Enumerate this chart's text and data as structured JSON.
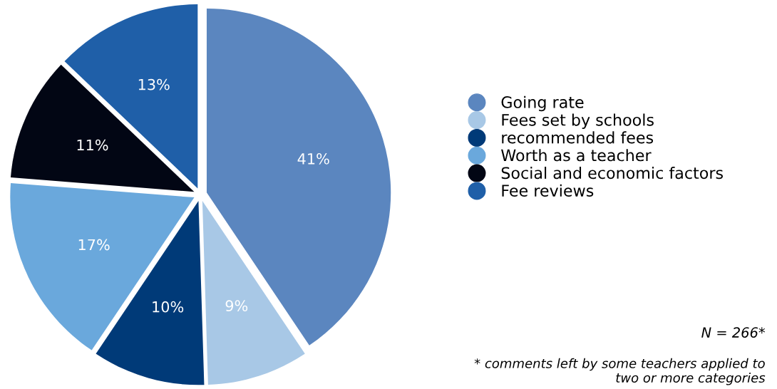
{
  "chart_data": {
    "type": "pie",
    "categories": [
      "Going rate",
      "Fees set by schools",
      "recommended fees",
      "Worth as a teacher",
      "Social and economic factors",
      "Fee reviews"
    ],
    "values": [
      41,
      9,
      10,
      17,
      11,
      13
    ],
    "colors": [
      "#5b86bf",
      "#a8c8e6",
      "#003a78",
      "#6aa8dc",
      "#020614",
      "#1f5fa8"
    ],
    "value_labels": [
      "41%",
      "9%",
      "10%",
      "17%",
      "11%",
      "13%"
    ],
    "legend": "right",
    "annotations": [
      "N = 266*",
      "* comments left by some teachers applied to two or more categories"
    ]
  }
}
